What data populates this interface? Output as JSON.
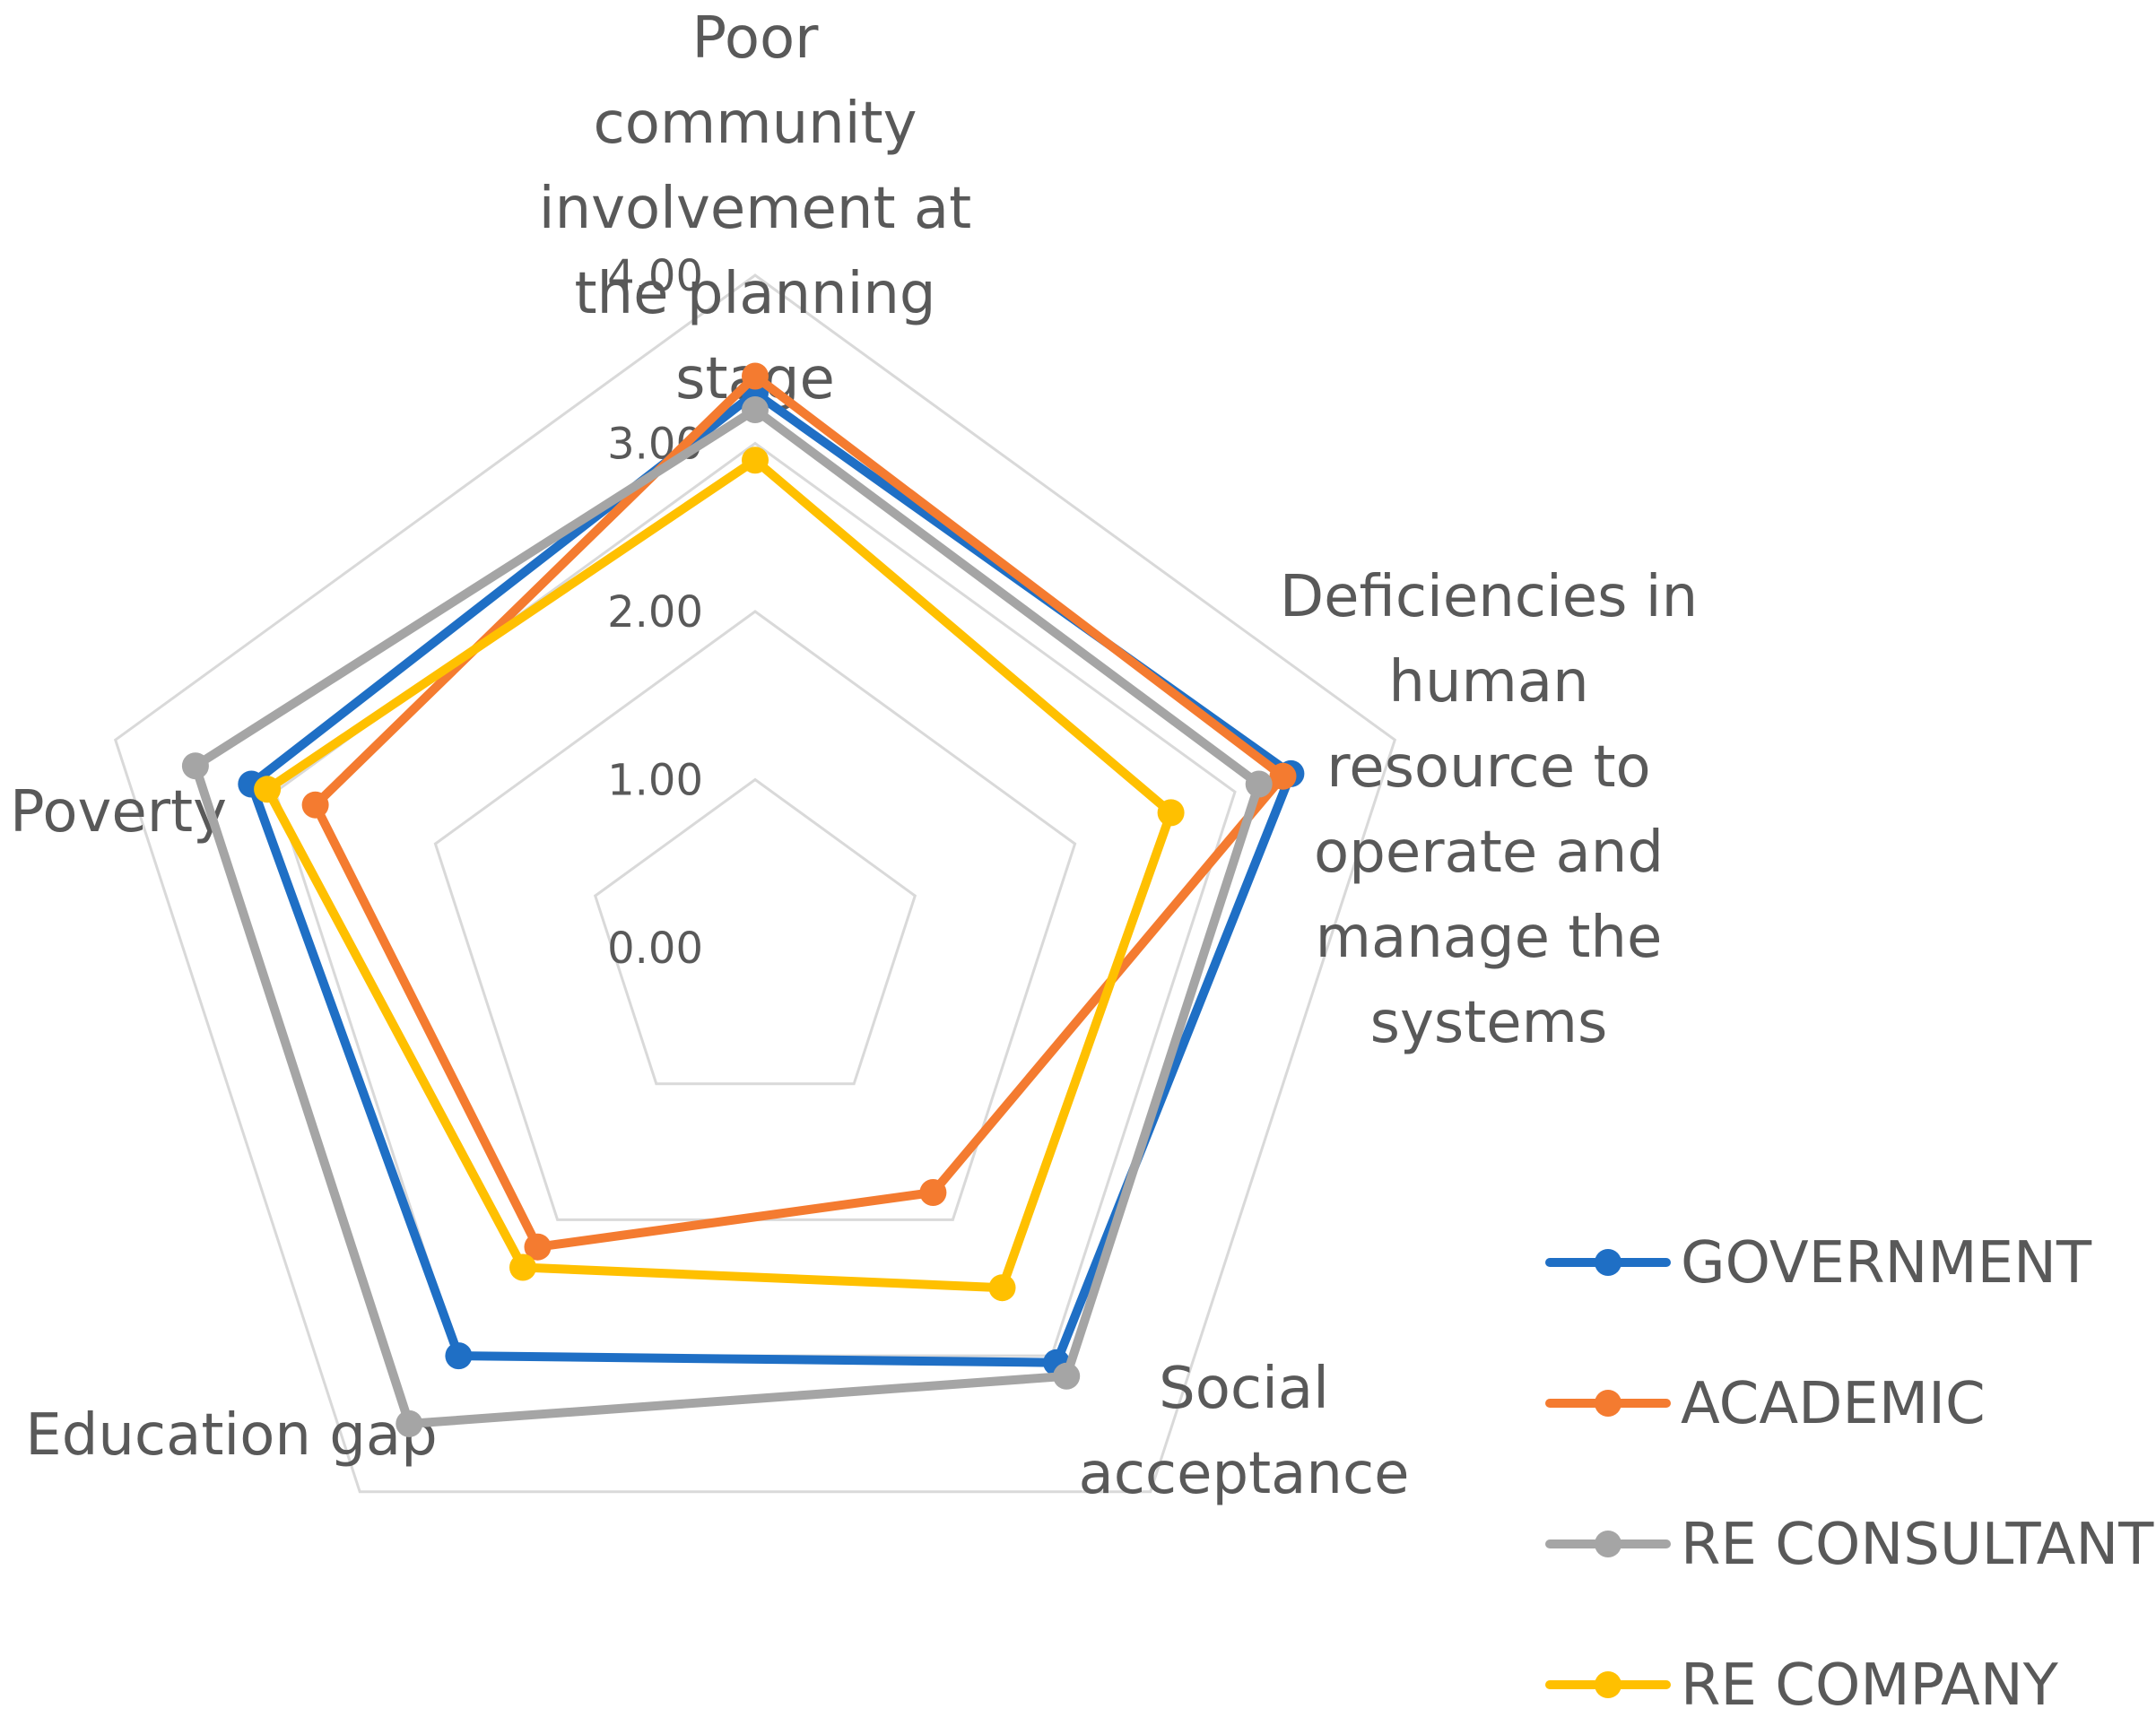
{
  "chart_data": {
    "type": "radar",
    "title": "",
    "categories": [
      "Poor community involvement at the planning stage",
      "Deficiencies in human resource to operate and manage the systems",
      "Social acceptance",
      "Education gap",
      "Poverty"
    ],
    "category_lines": [
      [
        "Poor",
        "community",
        "involvement at",
        "the planning",
        "stage"
      ],
      [
        "Deficiencies in",
        "human",
        "resource to",
        "operate and",
        "manage the",
        "systems"
      ],
      [
        "Social",
        "acceptance"
      ],
      [
        "Education gap"
      ],
      [
        "Poverty"
      ]
    ],
    "r_range": [
      0,
      4
    ],
    "ticks": [
      "0.00",
      "1.00",
      "2.00",
      "3.00",
      "4.00"
    ],
    "tick_values": [
      0,
      1,
      2,
      3,
      4
    ],
    "series": [
      {
        "name": "GOVERNMENT",
        "color": "#1f6fc5",
        "values": [
          3.3,
          3.35,
          3.05,
          3.0,
          3.15
        ]
      },
      {
        "name": "ACADEMIC",
        "color": "#f47b30",
        "values": [
          3.4,
          3.3,
          1.8,
          2.2,
          2.75
        ]
      },
      {
        "name": "RE CONSULTANT",
        "color": "#a5a5a5",
        "values": [
          3.2,
          3.15,
          3.15,
          3.5,
          3.5
        ]
      },
      {
        "name": "RE COMPANY",
        "color": "#ffc000",
        "values": [
          2.9,
          2.6,
          2.5,
          2.35,
          3.05
        ]
      }
    ],
    "legend_position": "bottom-right",
    "grid": true
  }
}
